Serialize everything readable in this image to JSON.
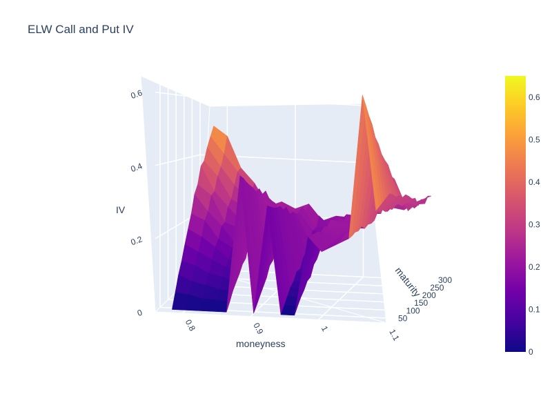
{
  "chart_data": {
    "type": "surface",
    "title": "ELW Call and Put IV",
    "xlabel": "moneyness",
    "ylabel": "maturity",
    "zlabel": "IV",
    "x_ticks": [
      "0.8",
      "0.9",
      "1",
      "1.1"
    ],
    "y_ticks": [
      "50",
      "100",
      "150",
      "200",
      "250",
      "300"
    ],
    "z_ticks": [
      "0",
      "0.2",
      "0.4",
      "0.6"
    ],
    "colorbar_ticks": [
      "0",
      "0.1",
      "0.2",
      "0.3",
      "0.4",
      "0.5",
      "0.6"
    ],
    "colorscale": [
      "#0d0887",
      "#46039f",
      "#7201a8",
      "#9c179e",
      "#bd3786",
      "#d8576b",
      "#ed7953",
      "#fb9f3a",
      "#fdca26",
      "#f0f921"
    ],
    "zrange": [
      0,
      0.65
    ],
    "xrange": [
      0.76,
      1.1
    ],
    "yrange": [
      20,
      300
    ],
    "surface_profiles": {
      "note_x": [
        0.78,
        0.8,
        0.82,
        0.84,
        0.86,
        0.88,
        0.9,
        0.92,
        0.94,
        0.96,
        0.98,
        1.0,
        1.02,
        1.04,
        1.06,
        1.08,
        1.1
      ],
      "near_maturity_iv": [
        0.0,
        0.0,
        0.0,
        0.0,
        0.0,
        0.38,
        0.0,
        0.3,
        0.0,
        0.0,
        0.22,
        0.18,
        0.2,
        0.22,
        0.62,
        0.3,
        0.35
      ],
      "far_maturity_iv": [
        0.52,
        0.45,
        0.36,
        0.3,
        0.26,
        0.24,
        0.23,
        0.22,
        0.21,
        0.21,
        0.22,
        0.23,
        0.24,
        0.25,
        0.26,
        0.27,
        0.28
      ]
    }
  }
}
